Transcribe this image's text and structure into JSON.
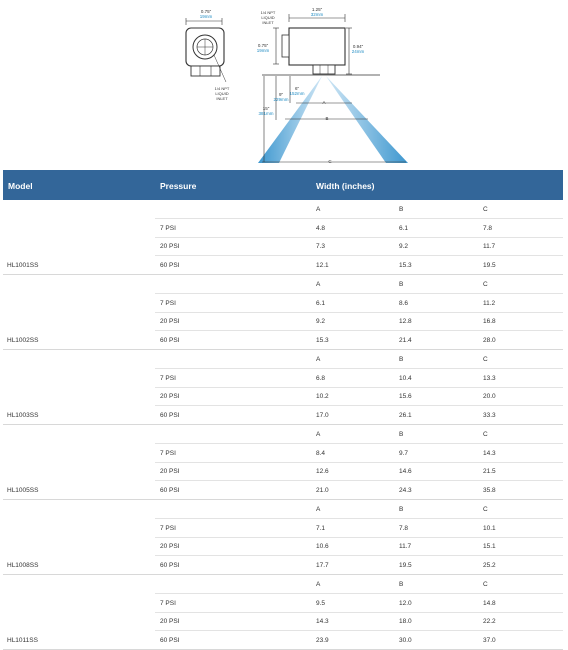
{
  "diagram": {
    "side_width_in": "0.75\"",
    "side_width_mm": "19mm",
    "side_inlet": [
      "1/4 NPT",
      "LIQUID",
      "INLET"
    ],
    "top_inlet": [
      "1/4 NPT",
      "LIQUID",
      "INLET"
    ],
    "top_width_in": "1.25\"",
    "top_width_mm": "32mm",
    "body_h_in": "0.75\"",
    "body_h_mm": "19mm",
    "total_h_in": "0.94\"",
    "total_h_mm": "24mm",
    "d6_in": "6\"",
    "d6_mm": "152mm",
    "d9_in": "9\"",
    "d9_mm": "229mm",
    "d15_in": "15\"",
    "d15_mm": "381mm",
    "label_a": "A",
    "label_b": "B",
    "label_c": "C"
  },
  "table": {
    "headers": {
      "model": "Model",
      "pressure": "Pressure",
      "width": "Width (inches)"
    },
    "col_labels": [
      "A",
      "B",
      "C"
    ],
    "groups": [
      {
        "model": "HL1001SS",
        "rows": [
          {
            "p": "7 PSI",
            "a": "4.8",
            "b": "6.1",
            "c": "7.8"
          },
          {
            "p": "20 PSI",
            "a": "7.3",
            "b": "9.2",
            "c": "11.7"
          },
          {
            "p": "60 PSI",
            "a": "12.1",
            "b": "15.3",
            "c": "19.5"
          }
        ]
      },
      {
        "model": "HL1002SS",
        "rows": [
          {
            "p": "7 PSI",
            "a": "6.1",
            "b": "8.6",
            "c": "11.2"
          },
          {
            "p": "20 PSI",
            "a": "9.2",
            "b": "12.8",
            "c": "16.8"
          },
          {
            "p": "60 PSI",
            "a": "15.3",
            "b": "21.4",
            "c": "28.0"
          }
        ]
      },
      {
        "model": "HL1003SS",
        "rows": [
          {
            "p": "7 PSI",
            "a": "6.8",
            "b": "10.4",
            "c": "13.3"
          },
          {
            "p": "20 PSI",
            "a": "10.2",
            "b": "15.6",
            "c": "20.0"
          },
          {
            "p": "60 PSI",
            "a": "17.0",
            "b": "26.1",
            "c": "33.3"
          }
        ]
      },
      {
        "model": "HL1005SS",
        "rows": [
          {
            "p": "7 PSI",
            "a": "8.4",
            "b": "9.7",
            "c": "14.3"
          },
          {
            "p": "20 PSI",
            "a": "12.6",
            "b": "14.6",
            "c": "21.5"
          },
          {
            "p": "60 PSI",
            "a": "21.0",
            "b": "24.3",
            "c": "35.8"
          }
        ]
      },
      {
        "model": "HL1008SS",
        "rows": [
          {
            "p": "7 PSI",
            "a": "7.1",
            "b": "7.8",
            "c": "10.1"
          },
          {
            "p": "20 PSI",
            "a": "10.6",
            "b": "11.7",
            "c": "15.1"
          },
          {
            "p": "60 PSI",
            "a": "17.7",
            "b": "19.5",
            "c": "25.2"
          }
        ]
      },
      {
        "model": "HL1011SS",
        "rows": [
          {
            "p": "7 PSI",
            "a": "9.5",
            "b": "12.0",
            "c": "14.8"
          },
          {
            "p": "20 PSI",
            "a": "14.3",
            "b": "18.0",
            "c": "22.2"
          },
          {
            "p": "60 PSI",
            "a": "23.9",
            "b": "30.0",
            "c": "37.0"
          }
        ]
      }
    ]
  }
}
